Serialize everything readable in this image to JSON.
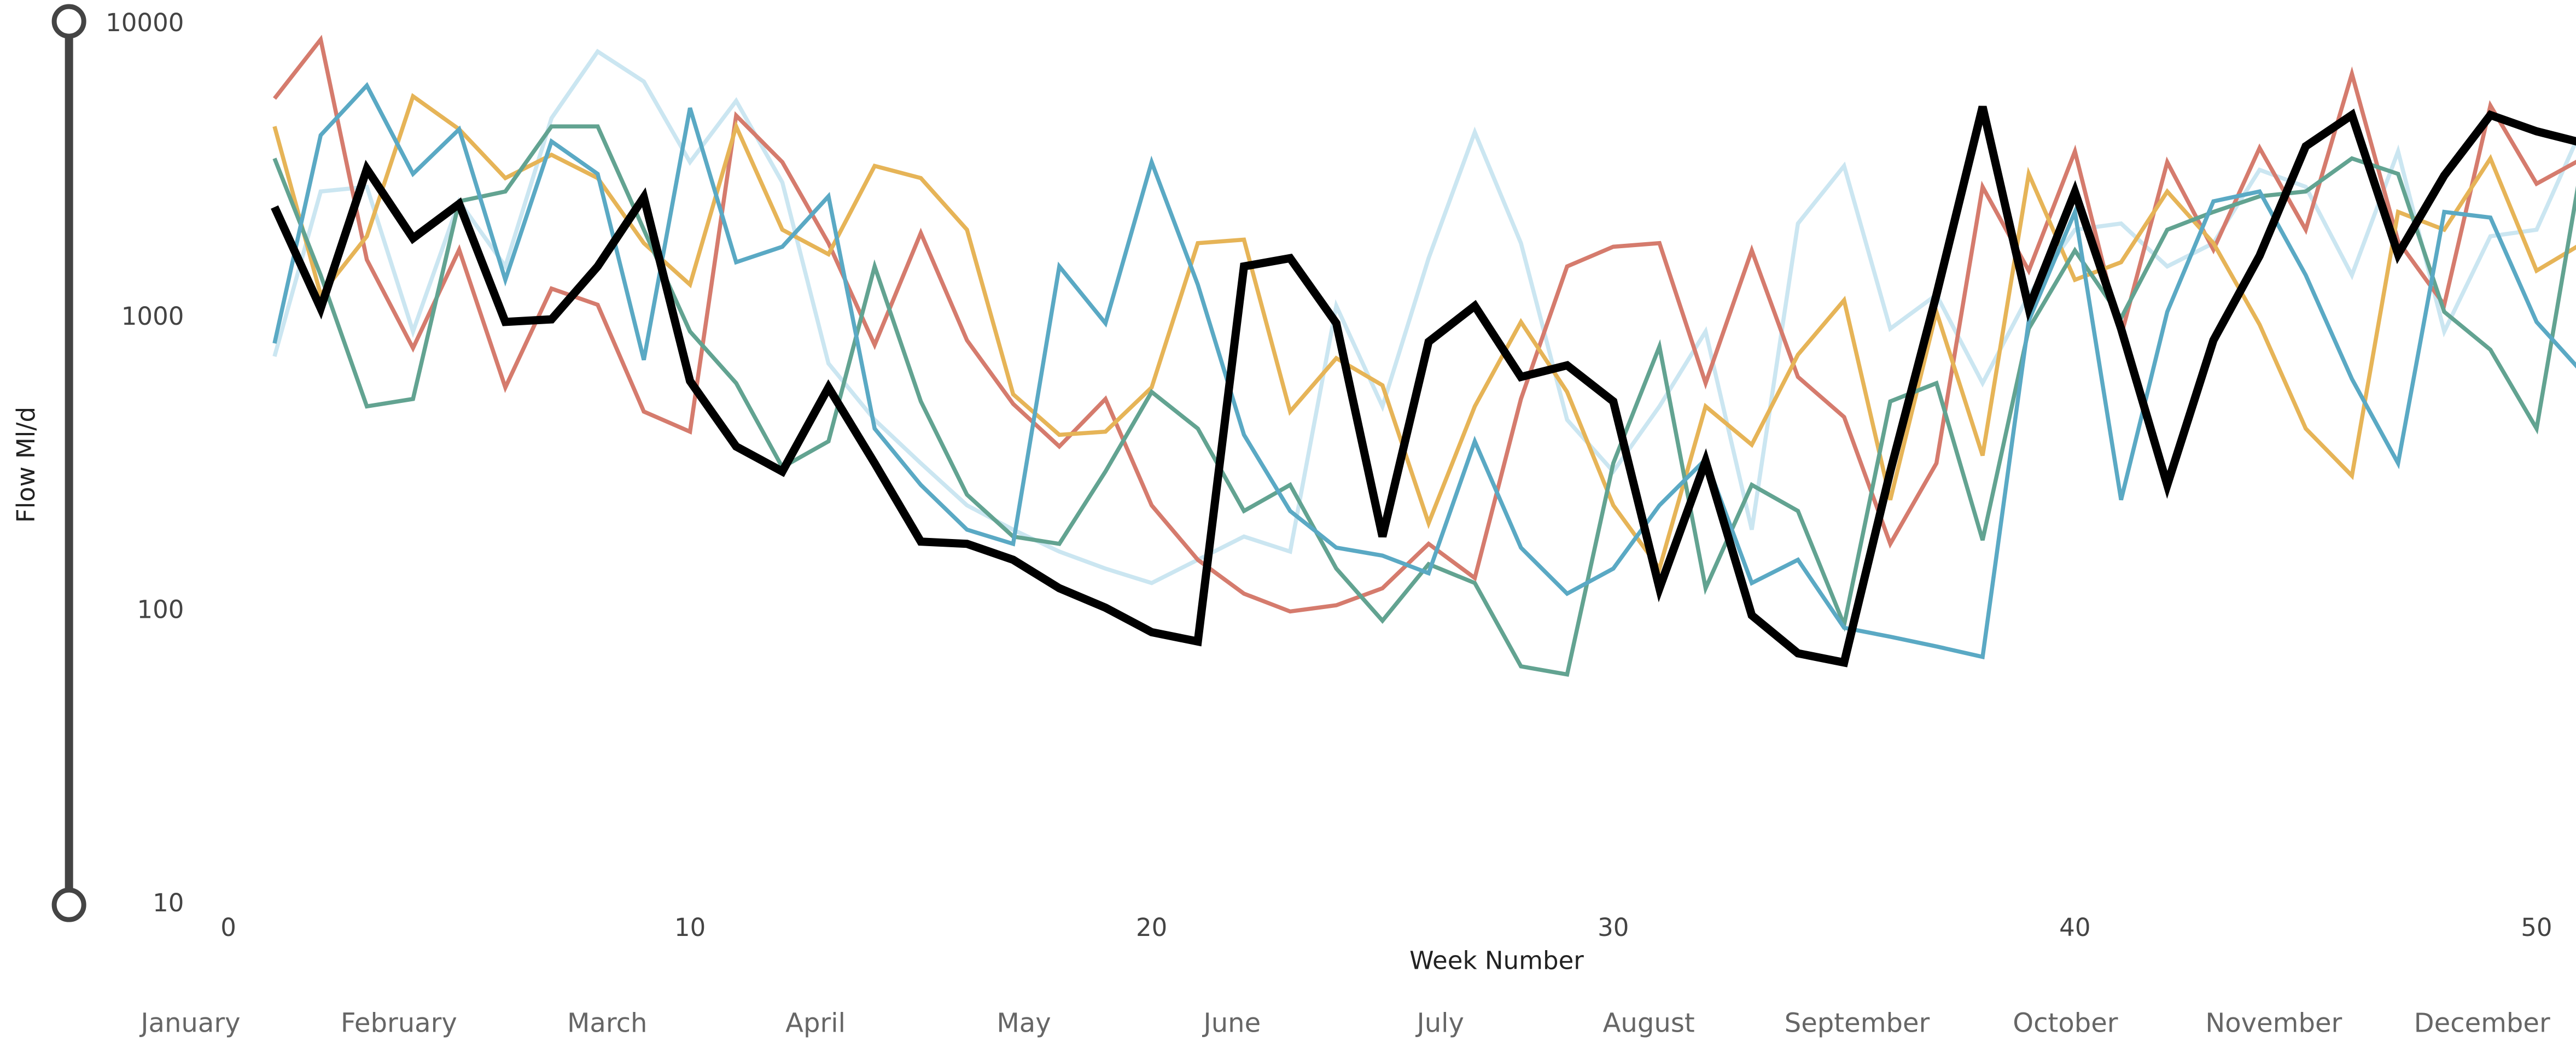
{
  "chart_data": {
    "type": "line",
    "x_label": "Week Number",
    "y_label": "Flow Ml/d",
    "log_y": true,
    "xlim": [
      0,
      51
    ],
    "xticks": [
      0,
      10,
      20,
      30,
      40,
      50
    ],
    "ylim": [
      10,
      10000
    ],
    "yticks": [
      10,
      100,
      1000,
      10000
    ],
    "months": [
      "January",
      "February",
      "March",
      "April",
      "May",
      "June",
      "July",
      "August",
      "September",
      "October",
      "November",
      "December"
    ],
    "x": [
      1,
      2,
      3,
      4,
      5,
      6,
      7,
      8,
      9,
      10,
      11,
      12,
      13,
      14,
      15,
      16,
      17,
      18,
      19,
      20,
      21,
      22,
      23,
      24,
      25,
      26,
      27,
      28,
      29,
      30,
      31,
      32,
      33,
      34,
      35,
      36,
      37,
      38,
      39,
      40,
      41,
      42,
      43,
      44,
      45,
      46,
      47,
      48,
      49,
      50,
      51
    ],
    "series": [
      {
        "color": "#cbe6f1",
        "width": 2.5,
        "values": [
          740,
          2700,
          2800,
          900,
          2500,
          1500,
          4800,
          8100,
          6400,
          3400,
          5500,
          2900,
          700,
          450,
          320,
          230,
          190,
          160,
          140,
          125,
          150,
          180,
          160,
          1100,
          500,
          1600,
          4300,
          1800,
          450,
          300,
          500,
          900,
          190,
          2100,
          3300,
          920,
          1200,
          600,
          1200,
          2000,
          2100,
          1500,
          1800,
          3200,
          2800,
          1400,
          3700,
          900,
          1900,
          2000,
          4500
        ]
      },
      {
        "color": "#d57b6d",
        "width": 2.5,
        "values": [
          5600,
          8900,
          1580,
          790,
          1710,
          580,
          1260,
          1110,
          480,
          410,
          4900,
          3400,
          1800,
          810,
          1950,
          840,
          510,
          365,
          530,
          230,
          150,
          115,
          100,
          105,
          120,
          170,
          130,
          530,
          1500,
          1750,
          1800,
          600,
          1700,
          630,
          460,
          170,
          320,
          2800,
          1450,
          3700,
          870,
          3400,
          1710,
          3800,
          2000,
          6800,
          1830,
          1110,
          5300,
          2870,
          3500
        ]
      },
      {
        "color": "#e6b457",
        "width": 2.5,
        "values": [
          4500,
          1200,
          1900,
          5700,
          4400,
          3000,
          3600,
          3000,
          1800,
          1300,
          4500,
          2000,
          1650,
          3300,
          3000,
          2000,
          550,
          400,
          410,
          580,
          1800,
          1850,
          480,
          730,
          590,
          200,
          500,
          970,
          560,
          230,
          140,
          500,
          370,
          750,
          1150,
          240,
          1050,
          340,
          3100,
          1350,
          1550,
          2700,
          1800,
          950,
          420,
          290,
          2300,
          2000,
          3500,
          1450,
          1800
        ]
      },
      {
        "color": "#62a391",
        "width": 2.5,
        "values": [
          3500,
          1400,
          500,
          530,
          2500,
          2700,
          4500,
          4500,
          2000,
          900,
          600,
          310,
          380,
          1500,
          520,
          250,
          180,
          170,
          300,
          560,
          420,
          220,
          270,
          140,
          93,
          145,
          125,
          65,
          61,
          320,
          800,
          120,
          270,
          220,
          90,
          520,
          600,
          175,
          920,
          1700,
          1000,
          2000,
          2300,
          2600,
          2700,
          3500,
          3100,
          1050,
          780,
          420,
          3500
        ]
      },
      {
        "color": "#5aa9c4",
        "width": 2.5,
        "values": [
          820,
          4200,
          6200,
          3100,
          4400,
          1350,
          4000,
          3100,
          720,
          5200,
          1550,
          1750,
          2600,
          420,
          270,
          190,
          170,
          1500,
          960,
          3400,
          1300,
          400,
          220,
          165,
          155,
          135,
          380,
          165,
          115,
          140,
          230,
          330,
          125,
          150,
          88,
          82,
          76,
          70,
          980,
          2300,
          240,
          1050,
          2500,
          2700,
          1400,
          620,
          320,
          2300,
          2200,
          970,
          650
        ]
      },
      {
        "color": "#000000",
        "width": 5,
        "values": [
          2390,
          1080,
          3220,
          1870,
          2450,
          970,
          990,
          1500,
          2580,
          610,
          365,
          300,
          580,
          320,
          173,
          170,
          150,
          120,
          103,
          85,
          79,
          1500,
          1600,
          960,
          180,
          830,
          1100,
          630,
          690,
          520,
          120,
          325,
          97,
          72,
          67,
          300,
          1200,
          5250,
          1080,
          2690,
          920,
          270,
          840,
          1630,
          3850,
          4920,
          1650,
          3060,
          4920,
          4330,
          3950
        ]
      }
    ]
  }
}
